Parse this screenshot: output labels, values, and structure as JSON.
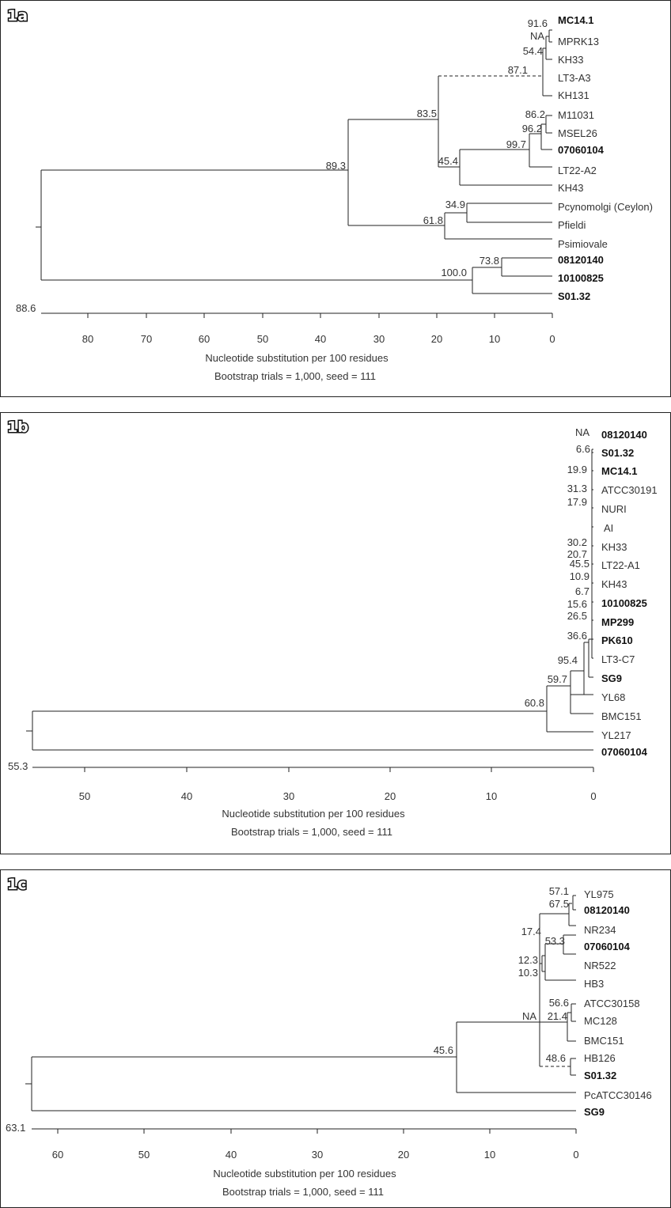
{
  "panels": [
    {
      "id": "1a",
      "badge": "1a",
      "root_value": "88.6",
      "ticks": [
        "80",
        "70",
        "60",
        "50",
        "40",
        "30",
        "20",
        "10",
        "0"
      ],
      "axis_caption": "Nucleotide substitution per 100 residues",
      "bootstrap_caption": "Bootstrap trials = 1,000, seed = 111",
      "leaves": [
        {
          "name": "MC14.1",
          "bold": true
        },
        {
          "name": "MPRK13",
          "bold": false
        },
        {
          "name": "KH33",
          "bold": false
        },
        {
          "name": "LT3-A3",
          "bold": false
        },
        {
          "name": "KH131",
          "bold": false
        },
        {
          "name": "M11031",
          "bold": false
        },
        {
          "name": "MSEL26",
          "bold": false
        },
        {
          "name": "07060104",
          "bold": true
        },
        {
          "name": "LT22-A2",
          "bold": false
        },
        {
          "name": "KH43",
          "bold": false
        },
        {
          "name": "Pcynomolgi (Ceylon)",
          "bold": false
        },
        {
          "name": "Pfieldi",
          "bold": false
        },
        {
          "name": "Psimiovale",
          "bold": false
        },
        {
          "name": "08120140",
          "bold": true
        },
        {
          "name": "10100825",
          "bold": true
        },
        {
          "name": "S01.32",
          "bold": true
        }
      ],
      "node_labels": [
        "91.6",
        "NA",
        "54.4",
        "87.1",
        "86.2",
        "96.2",
        "99.7",
        "45.4",
        "83.5",
        "89.3",
        "34.9",
        "61.8",
        "73.8",
        "100.0"
      ]
    },
    {
      "id": "1b",
      "badge": "1b",
      "root_value": "55.3",
      "ticks": [
        "50",
        "40",
        "30",
        "20",
        "10",
        "0"
      ],
      "axis_caption": "Nucleotide substitution per 100 residues",
      "bootstrap_caption": "Bootstrap trials = 1,000, seed = 111",
      "leaves": [
        {
          "name": "08120140",
          "bold": true
        },
        {
          "name": "S01.32",
          "bold": true
        },
        {
          "name": "MC14.1",
          "bold": true
        },
        {
          "name": "ATCC30191",
          "bold": false
        },
        {
          "name": "NURI",
          "bold": false
        },
        {
          "name": "AI",
          "bold": false
        },
        {
          "name": "KH33",
          "bold": false
        },
        {
          "name": "LT22-A1",
          "bold": false
        },
        {
          "name": "KH43",
          "bold": false
        },
        {
          "name": "10100825",
          "bold": true
        },
        {
          "name": "MP299",
          "bold": true
        },
        {
          "name": "PK610",
          "bold": true
        },
        {
          "name": "LT3-C7",
          "bold": false
        },
        {
          "name": "SG9",
          "bold": true
        },
        {
          "name": "YL68",
          "bold": false
        },
        {
          "name": "BMC151",
          "bold": false
        },
        {
          "name": "YL217",
          "bold": false
        },
        {
          "name": "07060104",
          "bold": true
        }
      ],
      "node_labels": [
        "NA",
        "6.6",
        "19.9",
        "31.3",
        "17.9",
        "30.2",
        "20.7",
        "45.5",
        "10.9",
        "6.7",
        "15.6",
        "26.5",
        "36.6",
        "95.4",
        "59.7",
        "60.8"
      ]
    },
    {
      "id": "1c",
      "badge": "1c",
      "root_value": "63.1",
      "ticks": [
        "60",
        "50",
        "40",
        "30",
        "20",
        "10",
        "0"
      ],
      "axis_caption": "Nucleotide substitution per 100 residues",
      "bootstrap_caption": "Bootstrap trials = 1,000, seed = 111",
      "leaves": [
        {
          "name": "YL975",
          "bold": false
        },
        {
          "name": "08120140",
          "bold": true
        },
        {
          "name": "NR234",
          "bold": false
        },
        {
          "name": "07060104",
          "bold": true
        },
        {
          "name": "NR522",
          "bold": false
        },
        {
          "name": "HB3",
          "bold": false
        },
        {
          "name": "ATCC30158",
          "bold": false
        },
        {
          "name": "MC128",
          "bold": false
        },
        {
          "name": "BMC151",
          "bold": false
        },
        {
          "name": "HB126",
          "bold": false
        },
        {
          "name": "S01.32",
          "bold": true
        },
        {
          "name": "PcATCC30146",
          "bold": false
        },
        {
          "name": "SG9",
          "bold": true
        }
      ],
      "node_labels": [
        "57.1",
        "67.5",
        "17.4",
        "53.3",
        "12.3",
        "10.3",
        "56.6",
        "21.4",
        "NA",
        "48.6",
        "45.6"
      ]
    }
  ]
}
